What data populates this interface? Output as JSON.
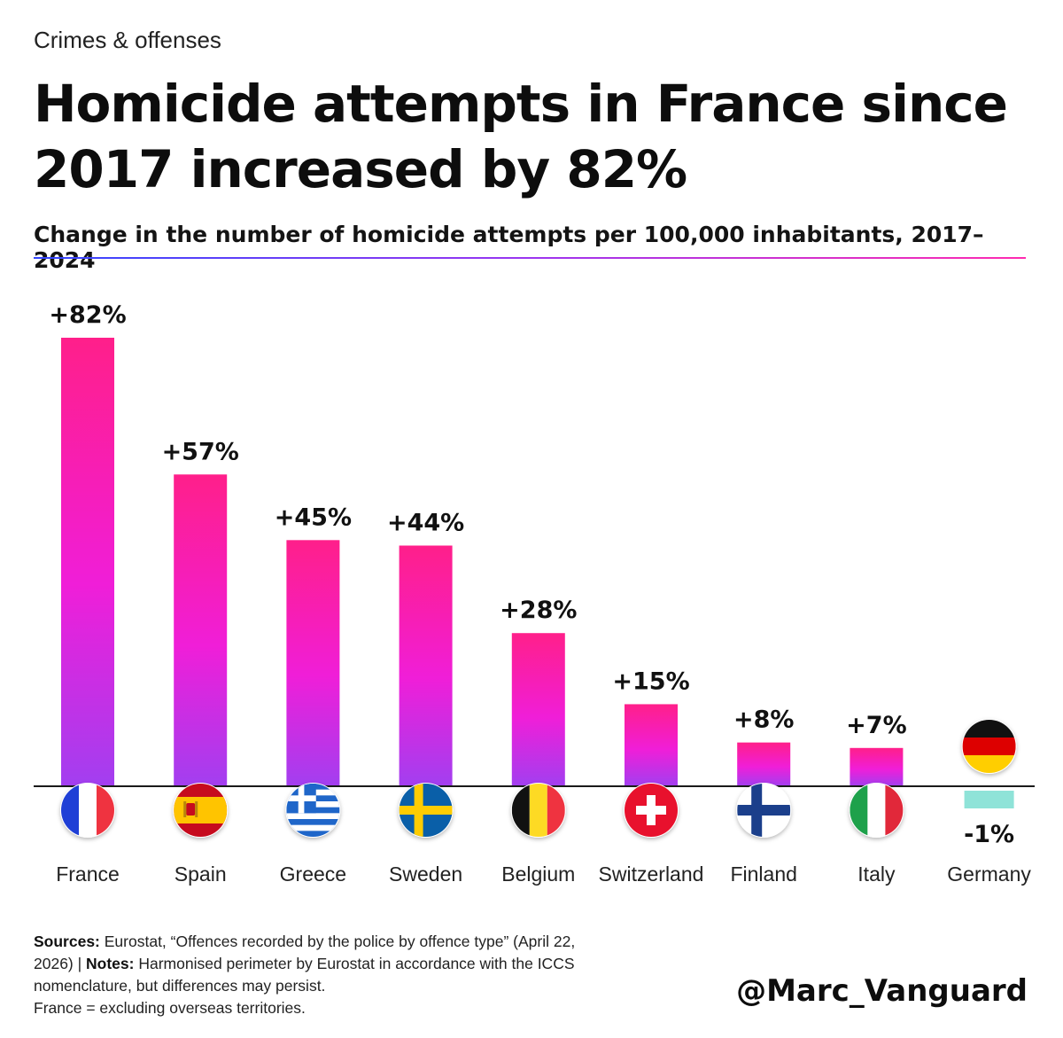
{
  "header": {
    "kicker": "Crimes & offenses",
    "title": "Homicide attempts in France since 2017 increased by 82%",
    "subtitle": "Change in the number of homicide attempts per 100,000 inhabitants, 2017–2024"
  },
  "footer": {
    "sources_label": "Sources:",
    "sources_text": " Eurostat, “Offences recorded by the police by offence type” (April 22, 2026) | ",
    "notes_label": "Notes:",
    "notes_text": " Harmonised perimeter by Eurostat in accordance with the ICCS nomenclature, but differences may persist.",
    "extra_note": "France = excluding overseas territories.",
    "handle": "@Marc_Vanguard"
  },
  "colors": {
    "bar_top": "#ff1f8a",
    "bar_mid": "#f01ed8",
    "bar_bottom": "#a23ff0",
    "negative_bar": "#8fe3d8",
    "baseline": "#1a1a1a",
    "rule_start": "#3346ff",
    "rule_end": "#ff2bb0"
  },
  "chart_data": {
    "type": "bar",
    "categories": [
      "France",
      "Spain",
      "Greece",
      "Sweden",
      "Belgium",
      "Switzerland",
      "Finland",
      "Italy",
      "Germany"
    ],
    "values": [
      82,
      57,
      45,
      44,
      28,
      15,
      8,
      7,
      -1
    ],
    "value_labels": [
      "+82%",
      "+57%",
      "+45%",
      "+44%",
      "+28%",
      "+15%",
      "+8%",
      "+7%",
      "-1%"
    ],
    "flag_icons": [
      "france-flag-icon",
      "spain-flag-icon",
      "greece-flag-icon",
      "sweden-flag-icon",
      "belgium-flag-icon",
      "switzerland-flag-icon",
      "finland-flag-icon",
      "italy-flag-icon",
      "germany-flag-icon"
    ],
    "title": "Homicide attempts in France since 2017 increased by 82%",
    "subtitle": "Change in the number of homicide attempts per 100,000 inhabitants, 2017–2024",
    "unit": "%",
    "xlabel": "",
    "ylabel": "",
    "ylim": [
      -5,
      90
    ],
    "grid": false,
    "legend": "none"
  }
}
